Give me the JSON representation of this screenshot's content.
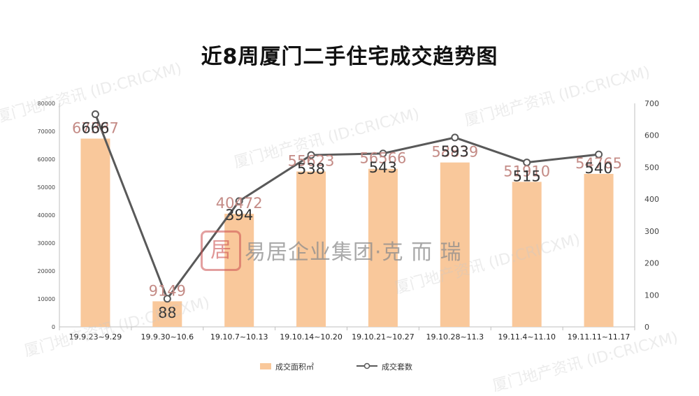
{
  "watermark": "厦门地产资讯 (ID:CRICXM)",
  "company_logo_text": "易居企业集团·克 而 瑞",
  "chart_data": {
    "type": "bar",
    "title": "近8周厦门二手住宅成交趋势图",
    "categories": [
      "19.9.23~9.29",
      "19.9.30~10.6",
      "19.10.7~10.13",
      "19.10.14~10.20",
      "19.10.21~10.27",
      "19.10.28~11.3",
      "19.11.4~11.10",
      "19.11.11~11.17"
    ],
    "series": [
      {
        "name": "成交面积㎡",
        "type": "bar",
        "axis": "left",
        "color": "#F9C89B",
        "values": [
          67387,
          9149,
          40472,
          55623,
          56566,
          58839,
          51910,
          54765
        ]
      },
      {
        "name": "成交套数",
        "type": "line",
        "axis": "right",
        "color": "#595959",
        "values": [
          666,
          88,
          394,
          538,
          543,
          593,
          515,
          540
        ]
      }
    ],
    "y_left": {
      "min": 0,
      "max": 80000,
      "step": 10000
    },
    "y_right": {
      "min": 0,
      "max": 700,
      "step": 100
    },
    "legend_position": "bottom",
    "grid": false,
    "bar_label_color": "#C48B86",
    "line_label_color": "#333333"
  }
}
